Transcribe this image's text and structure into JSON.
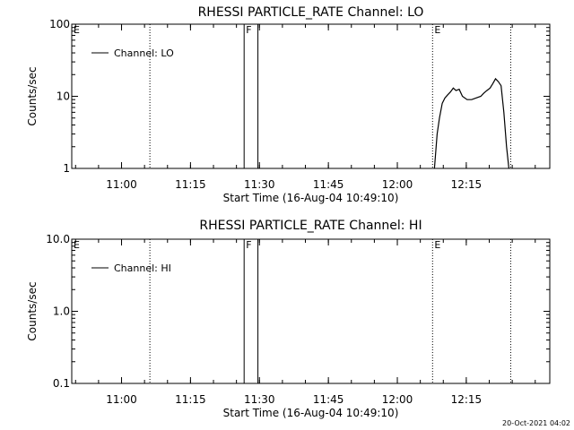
{
  "footer": {
    "timestamp": "20-Oct-2021 04:02"
  },
  "chart_data": [
    {
      "type": "line",
      "title": "RHESSI PARTICLE_RATE Channel: LO",
      "xlabel": "Start Time (16-Aug-04 10:49:10)",
      "ylabel": "Counts/sec",
      "y_scale": "log",
      "ylim": [
        1,
        100
      ],
      "y_ticks": [
        1,
        10,
        100
      ],
      "y_tick_labels": [
        "1",
        "10",
        "100"
      ],
      "x_unit": "minutes after 10:49:10",
      "xlim": [
        0,
        104
      ],
      "x_ticks": [
        10.833,
        25.833,
        40.833,
        55.833,
        70.833,
        85.833
      ],
      "x_tick_labels": [
        "11:00",
        "11:15",
        "11:30",
        "11:45",
        "12:00",
        "12:15"
      ],
      "legend": {
        "label": "Channel: LO",
        "position": "top-left"
      },
      "grid": false,
      "markers": [
        {
          "label": "E",
          "x": 0,
          "style": "dotted"
        },
        {
          "label": "",
          "x": 17,
          "style": "dotted"
        },
        {
          "label": "F",
          "x": 37.5,
          "style": "solid"
        },
        {
          "label": "",
          "x": 40.5,
          "style": "solid"
        },
        {
          "label": "E",
          "x": 78.5,
          "style": "dotted"
        },
        {
          "label": "",
          "x": 95.5,
          "style": "dotted"
        }
      ],
      "series": [
        {
          "name": "Channel: LO",
          "points": [
            [
              78.9,
              1
            ],
            [
              79.5,
              3
            ],
            [
              80,
              5
            ],
            [
              80.6,
              8
            ],
            [
              81.2,
              9.5
            ],
            [
              81.8,
              10.5
            ],
            [
              82.4,
              11.5
            ],
            [
              83,
              13
            ],
            [
              83.6,
              12
            ],
            [
              84.3,
              12.5
            ],
            [
              85,
              10
            ],
            [
              86,
              9
            ],
            [
              87,
              9
            ],
            [
              88,
              9.5
            ],
            [
              89,
              10
            ],
            [
              89.6,
              11
            ],
            [
              90.3,
              12
            ],
            [
              91,
              13
            ],
            [
              91.6,
              15
            ],
            [
              92.2,
              17.5
            ],
            [
              92.8,
              16
            ],
            [
              93.4,
              14
            ],
            [
              94,
              6
            ],
            [
              94.6,
              2
            ],
            [
              95.1,
              1
            ]
          ]
        }
      ]
    },
    {
      "type": "line",
      "title": "RHESSI PARTICLE_RATE Channel: HI",
      "xlabel": "Start Time (16-Aug-04 10:49:10)",
      "ylabel": "Counts/sec",
      "y_scale": "log",
      "ylim": [
        0.1,
        10
      ],
      "y_ticks": [
        0.1,
        1,
        10
      ],
      "y_tick_labels": [
        "0.1",
        "1.0",
        "10.0"
      ],
      "x_unit": "minutes after 10:49:10",
      "xlim": [
        0,
        104
      ],
      "x_ticks": [
        10.833,
        25.833,
        40.833,
        55.833,
        70.833,
        85.833
      ],
      "x_tick_labels": [
        "11:00",
        "11:15",
        "11:30",
        "11:45",
        "12:00",
        "12:15"
      ],
      "legend": {
        "label": "Channel: HI",
        "position": "top-left"
      },
      "grid": false,
      "markers": [
        {
          "label": "E",
          "x": 0,
          "style": "dotted"
        },
        {
          "label": "",
          "x": 17,
          "style": "dotted"
        },
        {
          "label": "F",
          "x": 37.5,
          "style": "solid"
        },
        {
          "label": "",
          "x": 40.5,
          "style": "solid"
        },
        {
          "label": "E",
          "x": 78.5,
          "style": "dotted"
        },
        {
          "label": "",
          "x": 95.5,
          "style": "dotted"
        }
      ],
      "series": [
        {
          "name": "Channel: HI",
          "points": []
        }
      ]
    }
  ]
}
